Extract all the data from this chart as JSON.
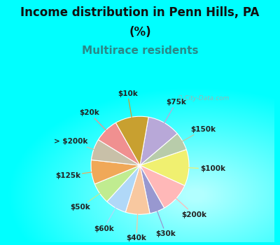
{
  "title_line1": "Income distribution in Penn Hills, PA",
  "title_line2": "(%)",
  "subtitle": "Multirace residents",
  "watermark": "ⓘ City-Data.com",
  "bg_cyan": "#00FFFF",
  "bg_chart": "#e0f0e8",
  "labels": [
    "$75k",
    "$150k",
    "$100k",
    "$200k",
    "$30k",
    "$40k",
    "$60k",
    "$50k",
    "$125k",
    "> $200k",
    "$20k",
    "$10k"
  ],
  "values": [
    11,
    6,
    12,
    10,
    5,
    8,
    7,
    7,
    8,
    7,
    8,
    11
  ],
  "colors": [
    "#b8a8d8",
    "#b8ccaa",
    "#f0f070",
    "#ffb8b8",
    "#9898d0",
    "#f8c8a0",
    "#b0d8f8",
    "#c0ec90",
    "#f0a858",
    "#c8c0a8",
    "#f09090",
    "#c8a030"
  ],
  "title_fontsize": 12,
  "subtitle_fontsize": 11,
  "subtitle_color": "#2a8888",
  "label_fontsize": 7.5,
  "chart_border_color": "#b0c8c0"
}
